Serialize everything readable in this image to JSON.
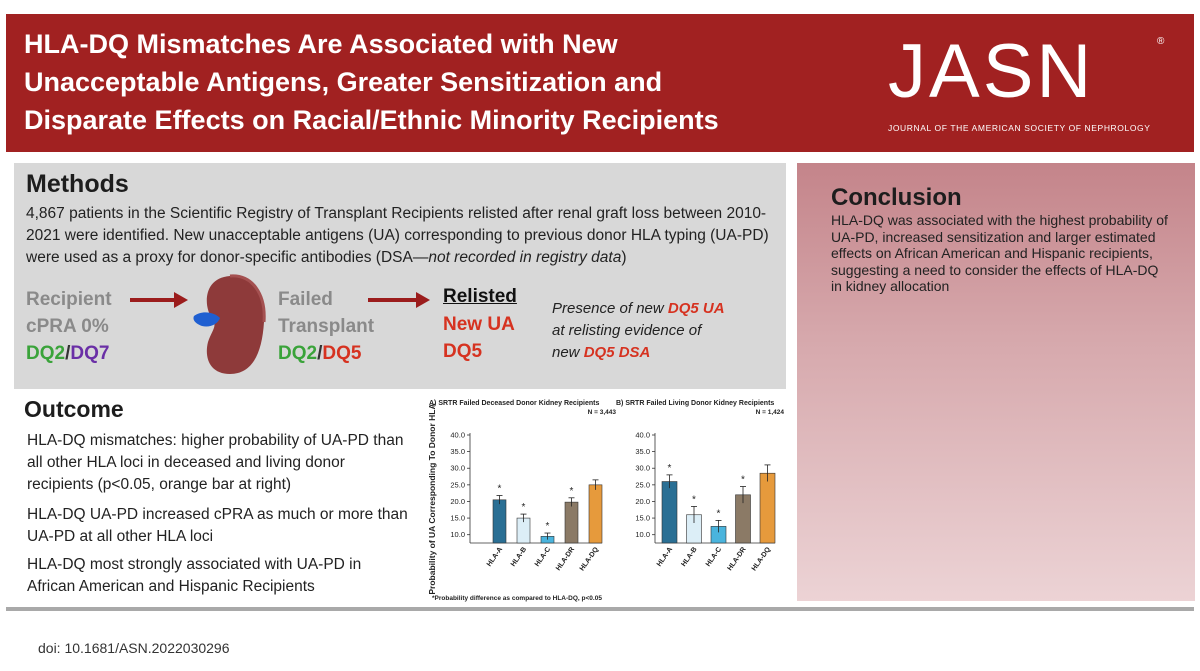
{
  "header": {
    "title_lines": [
      "HLA-DQ Mismatches Are Associated with New",
      "Unacceptable Antigens, Greater Sensitization and",
      "Disparate Effects on Racial/Ethnic Minority Recipients"
    ],
    "logo_text": "JASN",
    "registered_mark": "®",
    "journal_name": "JOURNAL OF THE AMERICAN SOCIETY OF NEPHROLOGY"
  },
  "methods": {
    "heading": "Methods",
    "text_main": "4,867 patients in the Scientific Registry of Transplant Recipients relisted after renal graft loss between 2010-2021 were identified. New unacceptable antigens (UA) corresponding to previous donor HLA typing (UA-PD) were used as a proxy for donor-specific antibodies (DSA—",
    "text_note": "not recorded in registry data",
    "text_close": ")",
    "flow": {
      "recipient_label": "Recipient",
      "recipient_cpra": "cPRA 0%",
      "recipient_dq_a": "DQ2",
      "recipient_sep": "/",
      "recipient_dq_b": "DQ7",
      "failed_line1": "Failed",
      "failed_line2": "Transplant",
      "failed_dq_a": "DQ2",
      "failed_sep": "/",
      "failed_dq_b": "DQ5",
      "relisted_label": "Relisted",
      "relisted_ua": "New UA",
      "relisted_dq": "DQ5",
      "evidence_1": "Presence of new ",
      "evidence_2": "DQ5 UA",
      "evidence_3": "at relisting evidence of",
      "evidence_4": "new ",
      "evidence_5": "DQ5 DSA"
    },
    "arrow_color": "#9b1c1c",
    "kidney_color": "#8e3a3a",
    "ureter_color": "#1f5fd1"
  },
  "outcome": {
    "heading": "Outcome",
    "items": [
      "HLA-DQ mismatches: higher probability of UA-PD than all other HLA loci in deceased and living donor recipients (p<0.05, orange bar at right)",
      "HLA-DQ UA-PD increased cPRA as much or more than UA-PD at all other HLA loci",
      "HLA-DQ most strongly associated with UA-PD in African American and Hispanic Recipients"
    ]
  },
  "conclusion": {
    "heading": "Conclusion",
    "text": "HLA-DQ was associated with the highest probability of UA-PD, increased sensitization and larger estimated effects on African American and Hispanic recipients, suggesting a need to consider the effects of HLA-DQ in kidney allocation"
  },
  "chart_data": [
    {
      "type": "bar",
      "title": "A) SRTR Failed Deceased Donor Kidney Recipients",
      "n_label": "N = 3,443",
      "categories": [
        "HLA-A",
        "HLA-B",
        "HLA-C",
        "HLA-DR",
        "HLA-DQ"
      ],
      "values": [
        20.5,
        15.0,
        9.5,
        19.8,
        25.0
      ],
      "errors": [
        1.3,
        1.2,
        1.0,
        1.3,
        1.5
      ],
      "significant": [
        true,
        true,
        true,
        true,
        false
      ],
      "colors": [
        "#2a6f94",
        "#dceef7",
        "#4ab4dd",
        "#8b7a66",
        "#e69a3c"
      ],
      "ylabel": "Probability of UA Corresponding To Donor HLA",
      "yticks": [
        "10.0",
        "15.0",
        "20.0",
        "25.0",
        "30.0",
        "35.0",
        "40.0"
      ],
      "ylim": [
        7.5,
        40
      ],
      "significance_marker": "*"
    },
    {
      "type": "bar",
      "title": "B) SRTR Failed Living Donor Kidney Recipients",
      "n_label": "N = 1,424",
      "categories": [
        "HLA-A",
        "HLA-B",
        "HLA-C",
        "HLA-DR",
        "HLA-DQ"
      ],
      "values": [
        26.0,
        16.0,
        12.5,
        22.0,
        28.5
      ],
      "errors": [
        2.0,
        2.5,
        1.8,
        2.5,
        2.5
      ],
      "significant": [
        true,
        true,
        true,
        true,
        false
      ],
      "colors": [
        "#2a6f94",
        "#dceef7",
        "#4ab4dd",
        "#8b7a66",
        "#e69a3c"
      ],
      "ylabel": "",
      "yticks": [
        "10.0",
        "15.0",
        "20.0",
        "25.0",
        "30.0",
        "35.0",
        "40.0"
      ],
      "ylim": [
        7.5,
        40
      ],
      "significance_marker": "*"
    }
  ],
  "chart_footnote": "*Probability difference as compared to HLA-DQ, p<0.05",
  "doi": "doi: 10.1681/ASN.2022030296"
}
